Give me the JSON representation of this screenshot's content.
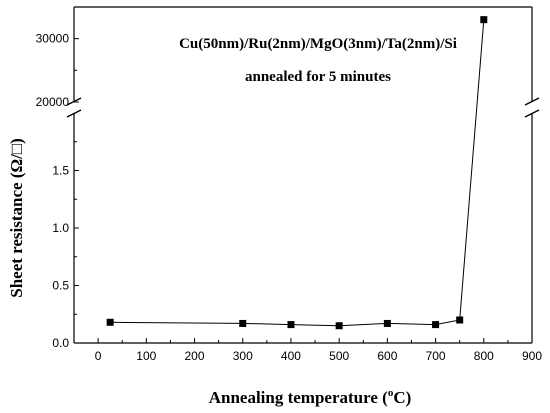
{
  "chart_data": {
    "type": "line",
    "title": "",
    "annotations": [
      "Cu(50nm)/Ru(2nm)/MgO(3nm)/Ta(2nm)/Si",
      "annealed for 5 minutes"
    ],
    "xlabel": "Annealing temperature (",
    "xlabel_super": "o",
    "xlabel_suffix": "C)",
    "ylabel": "Sheet resistance  (Ω/□)",
    "xlim": [
      -50,
      900
    ],
    "x_ticks": [
      "0",
      "100",
      "200",
      "300",
      "400",
      "500",
      "600",
      "700",
      "800",
      "900"
    ],
    "y_lower_range": [
      0,
      2.0
    ],
    "y_lower_ticks": [
      "0.0",
      "0.5",
      "1.0",
      "1.5"
    ],
    "y_upper_range": [
      20000,
      35000
    ],
    "y_upper_ticks": [
      "20000",
      "30000"
    ],
    "axis_break": true,
    "grid": false,
    "series": [
      {
        "marker": "square",
        "x": [
          25,
          300,
          400,
          500,
          600,
          700,
          750,
          800
        ],
        "y": [
          0.18,
          0.17,
          0.16,
          0.15,
          0.17,
          0.16,
          0.2,
          33000
        ]
      }
    ]
  }
}
